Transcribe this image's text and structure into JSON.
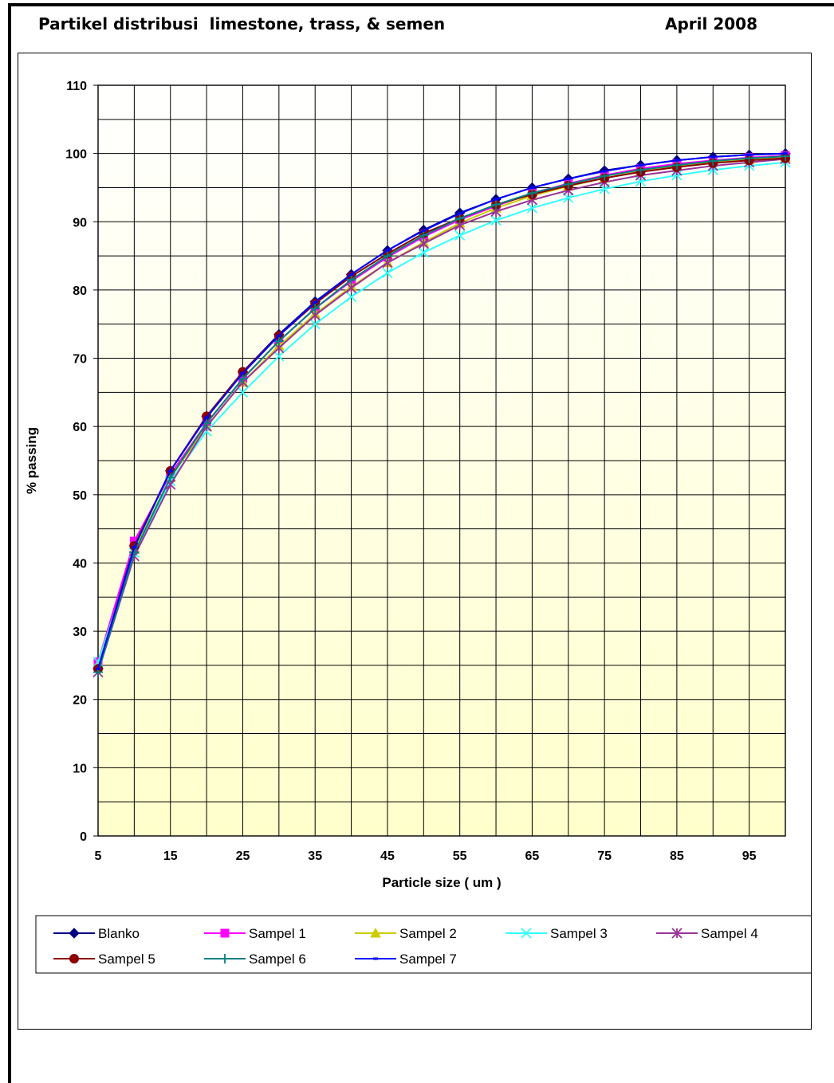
{
  "header": {
    "title": "Partikel distribusi  limestone, trass, & semen",
    "date": "April 2008"
  },
  "chart_data": {
    "type": "line",
    "xlabel": "Particle size ( um )",
    "ylabel": "% passing",
    "x": [
      5,
      10,
      15,
      20,
      25,
      30,
      35,
      40,
      45,
      50,
      55,
      60,
      65,
      70,
      75,
      80,
      85,
      90,
      95,
      100
    ],
    "xticks": [
      5,
      15,
      25,
      35,
      45,
      55,
      65,
      75,
      85,
      95
    ],
    "xlim": [
      5,
      100
    ],
    "ylim": [
      0,
      110
    ],
    "yticks": [
      0,
      10,
      20,
      30,
      40,
      50,
      60,
      70,
      80,
      90,
      100,
      110
    ],
    "grid": true,
    "legend_position": "bottom",
    "series": [
      {
        "name": "Blanko",
        "color": "#000080",
        "marker": "diamond",
        "values": [
          24.5,
          42.5,
          53.5,
          61.5,
          68,
          73.5,
          78.3,
          82.3,
          85.8,
          88.8,
          91.3,
          93.3,
          95,
          96.3,
          97.5,
          98.3,
          99,
          99.5,
          99.8,
          100
        ]
      },
      {
        "name": "Sampel 1",
        "color": "#FF00FF",
        "marker": "square",
        "values": [
          25.5,
          43.2,
          53,
          60.5,
          67,
          72.5,
          77.3,
          81.3,
          84.8,
          87.8,
          90.3,
          92.3,
          94.2,
          95.6,
          96.8,
          97.8,
          98.5,
          99,
          99.4,
          99.7
        ]
      },
      {
        "name": "Sampel 2",
        "color": "#CCCC00",
        "marker": "triangle",
        "values": [
          25,
          42,
          52.5,
          60,
          66.5,
          71.8,
          76.5,
          80.5,
          84,
          87,
          89.8,
          92,
          93.8,
          95.2,
          96.4,
          97.4,
          98.2,
          98.7,
          99.1,
          99.4
        ]
      },
      {
        "name": "Sampel 3",
        "color": "#33FFFF",
        "marker": "x",
        "values": [
          25.5,
          41.5,
          52,
          59.3,
          65,
          70.3,
          75,
          79,
          82.5,
          85.5,
          88,
          90.2,
          92,
          93.5,
          94.8,
          95.9,
          96.8,
          97.6,
          98.2,
          98.7
        ]
      },
      {
        "name": "Sampel 4",
        "color": "#993399",
        "marker": "star",
        "values": [
          24,
          41,
          51.5,
          60,
          66.5,
          71.5,
          76.3,
          80.3,
          84,
          86.8,
          89.5,
          91.5,
          93.2,
          94.6,
          95.8,
          96.8,
          97.5,
          98.2,
          98.7,
          99.2
        ]
      },
      {
        "name": "Sampel 5",
        "color": "#8B0000",
        "marker": "circle",
        "values": [
          24.5,
          42.5,
          53.5,
          61.5,
          68,
          73.3,
          78,
          82,
          85.3,
          88.3,
          90.5,
          92.5,
          94,
          95.3,
          96.4,
          97.3,
          98,
          98.6,
          99,
          99.3
        ]
      },
      {
        "name": "Sampel 6",
        "color": "#008080",
        "marker": "plus",
        "values": [
          24,
          41.5,
          52.5,
          60.5,
          67,
          72.5,
          77.3,
          81.5,
          85,
          88,
          90.5,
          92.5,
          94.2,
          95.5,
          96.7,
          97.6,
          98.3,
          98.9,
          99.3,
          99.6
        ]
      },
      {
        "name": "Sampel 7",
        "color": "#0000FF",
        "marker": "dash",
        "values": [
          24.5,
          42.3,
          53.5,
          61.3,
          67.8,
          73.3,
          78.2,
          82.3,
          85.8,
          88.7,
          91.2,
          93.3,
          95,
          96.3,
          97.4,
          98.3,
          99,
          99.5,
          99.8,
          100
        ]
      }
    ]
  }
}
